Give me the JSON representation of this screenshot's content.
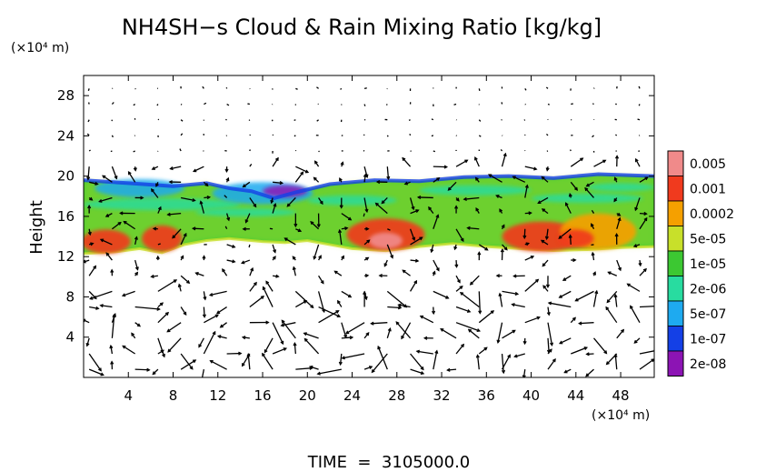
{
  "chart_data": {
    "type": "heatmap",
    "title": "NH4SH−s Cloud & Rain Mixing Ratio [kg/kg]",
    "xlabel": "",
    "ylabel": "Height",
    "x_unit": "(×10⁴ m)",
    "y_unit": "(×10⁴ m)",
    "xlim": [
      0,
      51
    ],
    "ylim": [
      0,
      30
    ],
    "x_ticks": [
      4,
      8,
      12,
      16,
      20,
      24,
      28,
      32,
      36,
      40,
      44,
      48
    ],
    "x_tick_labels": [
      "4",
      "8",
      "12",
      "16",
      "20",
      "24",
      "28",
      "32",
      "36",
      "40",
      "44",
      "48"
    ],
    "y_ticks": [
      4,
      8,
      12,
      16,
      20,
      24,
      28
    ],
    "y_tick_labels": [
      "4",
      "8",
      "12",
      "16",
      "20",
      "24",
      "28"
    ],
    "footer": "TIME  =  3105000.0",
    "colorbar": {
      "levels": [
        {
          "label": "0.005",
          "color": "#f08a8a"
        },
        {
          "label": "0.001",
          "color": "#f03a1e"
        },
        {
          "label": "0.0002",
          "color": "#f5a000"
        },
        {
          "label": "5e-05",
          "color": "#c8e02a"
        },
        {
          "label": "1e-05",
          "color": "#3cc832"
        },
        {
          "label": "2e-06",
          "color": "#28dca0"
        },
        {
          "label": "5e-07",
          "color": "#1eaaf0"
        },
        {
          "label": "1e-07",
          "color": "#1440e6"
        },
        {
          "label": "2e-08",
          "color": "#8c14b4"
        }
      ]
    },
    "cloud_layer": {
      "base_height": 12.5,
      "top_height": 19.5,
      "top_profile": [
        [
          0,
          19.6
        ],
        [
          4,
          19.3
        ],
        [
          8,
          19.0
        ],
        [
          11,
          19.3
        ],
        [
          13,
          18.8
        ],
        [
          15,
          18.5
        ],
        [
          17,
          17.8
        ],
        [
          19,
          18.4
        ],
        [
          22,
          19.2
        ],
        [
          26,
          19.6
        ],
        [
          30,
          19.5
        ],
        [
          34,
          19.9
        ],
        [
          38,
          20.0
        ],
        [
          42,
          19.8
        ],
        [
          46,
          20.2
        ],
        [
          51,
          20.0
        ]
      ],
      "base_profile": [
        [
          0,
          12.3
        ],
        [
          3,
          12.5
        ],
        [
          5,
          12.8
        ],
        [
          7,
          12.4
        ],
        [
          9,
          13.2
        ],
        [
          11,
          13.6
        ],
        [
          13,
          13.8
        ],
        [
          16,
          13.5
        ],
        [
          18,
          13.4
        ],
        [
          20,
          13.6
        ],
        [
          22,
          13.2
        ],
        [
          24,
          12.8
        ],
        [
          27,
          12.6
        ],
        [
          30,
          13.0
        ],
        [
          33,
          13.3
        ],
        [
          36,
          13.0
        ],
        [
          39,
          12.8
        ],
        [
          42,
          12.6
        ],
        [
          45,
          12.7
        ],
        [
          48,
          12.9
        ],
        [
          51,
          13.0
        ]
      ],
      "high_mixing_cells": [
        {
          "x": 2,
          "y": 13.5,
          "rx": 2.2,
          "ry": 1.2,
          "level": "0.001"
        },
        {
          "x": 7,
          "y": 13.8,
          "rx": 1.8,
          "ry": 1.3,
          "level": "0.001"
        },
        {
          "x": 27,
          "y": 14.2,
          "rx": 3.5,
          "ry": 1.6,
          "level": "0.001"
        },
        {
          "x": 27,
          "y": 13.6,
          "rx": 1.5,
          "ry": 0.8,
          "level": "0.005"
        },
        {
          "x": 41,
          "y": 14.0,
          "rx": 3.6,
          "ry": 1.5,
          "level": "0.001"
        },
        {
          "x": 46,
          "y": 14.5,
          "rx": 3.4,
          "ry": 1.8,
          "level": "0.0002"
        },
        {
          "x": 44,
          "y": 13.8,
          "rx": 1.6,
          "ry": 0.9,
          "level": "0.001"
        }
      ],
      "upper_anvil": [
        {
          "x": 16,
          "y": 18.3,
          "rx": 4.5,
          "ry": 1.1,
          "level": "5e-07"
        },
        {
          "x": 5,
          "y": 18.8,
          "rx": 4.0,
          "ry": 0.9,
          "level": "5e-07"
        },
        {
          "x": 18,
          "y": 18.5,
          "rx": 2.0,
          "ry": 0.6,
          "level": "2e-08"
        }
      ]
    },
    "wind_vectors": "quiver field shown across full domain; weak (dots) above ~20, strongest below ~8"
  }
}
